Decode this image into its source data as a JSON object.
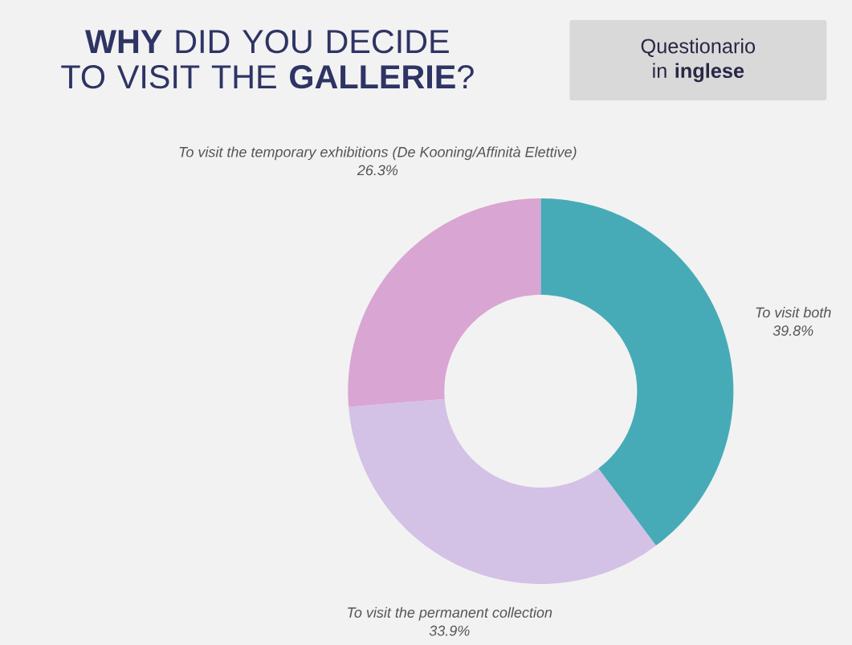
{
  "chart_data": {
    "type": "donut",
    "title": "**WHY** DID YOU DECIDE TO VISIT THE **GALLERIE**?",
    "subtitle": "Questionario in **inglese**",
    "categories": [
      "To visit both",
      "To visit the permanent collection",
      "To visit the temporary exhibitions (De Kooning/Affinità Elettive)"
    ],
    "values": [
      39.8,
      33.9,
      26.3
    ],
    "value_labels": [
      "39.8%",
      "33.9%",
      "26.3%"
    ],
    "colors": [
      "#47abb7",
      "#d4c1e6",
      "#d9a5d3"
    ]
  }
}
